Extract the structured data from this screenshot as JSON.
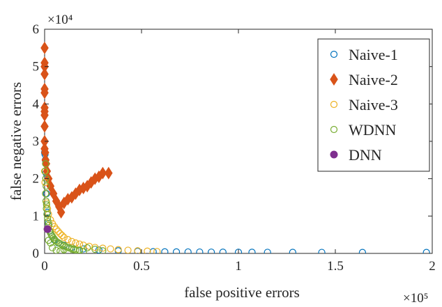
{
  "chart_data": {
    "type": "scatter",
    "xlabel": "false positive errors",
    "ylabel": "false negative errors",
    "x_multiplier_label": "×10⁵",
    "y_multiplier_label": "×10⁴",
    "xlim": [
      0,
      200000
    ],
    "ylim": [
      0,
      60000
    ],
    "x_ticks": [
      0,
      50000,
      100000,
      150000,
      200000
    ],
    "x_tick_labels": [
      "0",
      "0.5",
      "1",
      "1.5",
      "2"
    ],
    "y_ticks": [
      0,
      10000,
      20000,
      30000,
      40000,
      50000,
      60000
    ],
    "y_tick_labels": [
      "0",
      "1",
      "2",
      "3",
      "4",
      "5",
      "6"
    ],
    "grid": false,
    "legend_position": "top-right",
    "series": [
      {
        "name": "Naive-1",
        "marker": "open-circle",
        "color": "#0072BD",
        "x": [
          0,
          200,
          400,
          700,
          1000,
          1500,
          2000,
          2800,
          3800,
          5000,
          7000,
          10000,
          14000,
          20000,
          28000,
          38000,
          48000,
          56000,
          62000,
          68000,
          74000,
          80000,
          86000,
          92000,
          100000,
          107000,
          115000,
          128000,
          143000,
          164000,
          197000
        ],
        "y": [
          27000,
          26500,
          25000,
          21500,
          16000,
          11000,
          8000,
          6000,
          4600,
          3600,
          2800,
          2200,
          1600,
          1200,
          900,
          700,
          550,
          460,
          420,
          400,
          380,
          360,
          340,
          320,
          310,
          300,
          290,
          280,
          270,
          260,
          250
        ]
      },
      {
        "name": "Naive-2",
        "marker": "filled-diamond",
        "color": "#D95319",
        "x": [
          0,
          0,
          0,
          0,
          0,
          0,
          0,
          0,
          0,
          0,
          0,
          0,
          300,
          500,
          800,
          1200,
          2000,
          3000,
          4500,
          6000,
          7500,
          8500,
          10000,
          12000,
          14000,
          16000,
          18000,
          20000,
          22000,
          24000,
          26000,
          28000,
          30000,
          33000
        ],
        "y": [
          55000,
          51000,
          50000,
          48000,
          44000,
          43000,
          39000,
          38000,
          37000,
          34000,
          30000,
          28000,
          27000,
          25000,
          24000,
          22000,
          20000,
          18000,
          16000,
          14000,
          12500,
          11000,
          13500,
          14500,
          15000,
          16000,
          17000,
          17500,
          18000,
          19000,
          20000,
          20500,
          21500,
          21500
        ]
      },
      {
        "name": "Naive-3",
        "marker": "open-circle",
        "color": "#EDB120",
        "x": [
          0,
          200,
          500,
          1000,
          1500,
          2000,
          3000,
          4000,
          5000,
          6000,
          7000,
          8000,
          9000,
          10000,
          12000,
          14000,
          16000,
          18000,
          20000,
          23000,
          26000,
          30000,
          34000,
          38000,
          43000,
          48000,
          53000,
          58000
        ],
        "y": [
          22000,
          19000,
          16000,
          13500,
          12000,
          10500,
          9000,
          8000,
          7200,
          6500,
          5900,
          5300,
          4800,
          4300,
          3700,
          3200,
          2800,
          2500,
          2200,
          1900,
          1600,
          1400,
          1200,
          1000,
          850,
          700,
          600,
          500
        ]
      },
      {
        "name": "WDNN",
        "marker": "open-circle",
        "color": "#77AC30",
        "x": [
          500,
          300,
          600,
          800,
          500,
          700,
          1000,
          900,
          1200,
          1500,
          1800,
          2200,
          1300,
          2500,
          3000,
          3500,
          4000,
          4500,
          5000,
          5500,
          6000,
          7000,
          8000,
          9000,
          10000,
          11000,
          12000,
          13000,
          14000,
          15000,
          16000,
          18000,
          20000,
          2000,
          3000,
          4000,
          6000,
          8000,
          10000,
          12000,
          15000,
          18000,
          22000,
          26000,
          30000
        ],
        "y": [
          24000,
          22000,
          20000,
          18000,
          16000,
          14000,
          13000,
          12000,
          10500,
          9500,
          8500,
          7500,
          6500,
          6000,
          5500,
          5000,
          4600,
          4200,
          3800,
          3500,
          3200,
          2900,
          2600,
          2300,
          2000,
          1800,
          1600,
          1400,
          1200,
          1000,
          900,
          700,
          500,
          3500,
          2800,
          1500,
          800,
          600,
          1000,
          400,
          1200,
          900,
          1500,
          1100,
          700
        ]
      },
      {
        "name": "DNN",
        "marker": "filled-circle",
        "color": "#7E2F8E",
        "x": [
          1500
        ],
        "y": [
          6500
        ]
      }
    ]
  }
}
